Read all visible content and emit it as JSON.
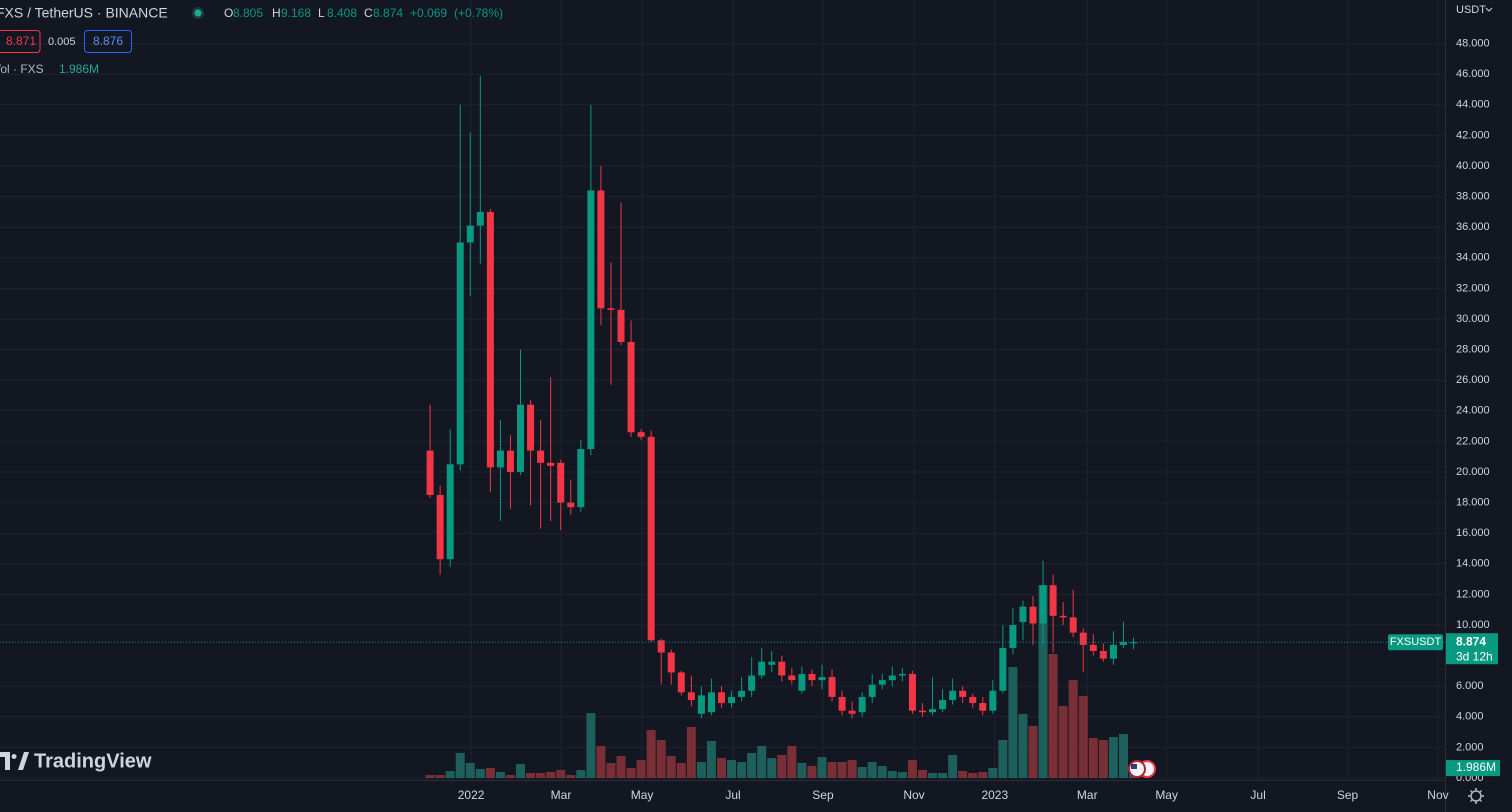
{
  "chart_data": {
    "type": "candlestick",
    "title": "FXS / TetherUS · BINANCE",
    "ohlc_letters": [
      "O",
      "H",
      "L",
      "C"
    ],
    "change": {
      "value": 0.069,
      "label": "+0.069"
    },
    "change_pct": {
      "value": 0.78,
      "label": "(+0.78%)"
    },
    "bid": 8.871,
    "spread": 0.005,
    "ask": 8.876,
    "volume_title": "Vol · FXS",
    "currency": "USDT",
    "countdown": "3d 12h",
    "brand": "TradingView",
    "up_color": "#089981",
    "down_color": "#f23645",
    "volume_up_color": "#1d5f5a",
    "volume_down_color": "#7a2e35",
    "grid": true,
    "categories": [
      null,
      null,
      null,
      null,
      null,
      null,
      null,
      null,
      null,
      null,
      null,
      null,
      null,
      null,
      null,
      null,
      null,
      null,
      null,
      null,
      null,
      null,
      null,
      null,
      null,
      null,
      null,
      null,
      null,
      null,
      null,
      null,
      null,
      null,
      null,
      null,
      null,
      null,
      null,
      null,
      null,
      null,
      null,
      null,
      null,
      null,
      null,
      null,
      null,
      null,
      null,
      null,
      null,
      null,
      null,
      null,
      null,
      null,
      null,
      null,
      null,
      null,
      null,
      null,
      null,
      null,
      null,
      null,
      null,
      null,
      null
    ],
    "series": [
      {
        "name": "FXSUSDT",
        "open": [
          21.4,
          18.5,
          14.3,
          20.5,
          35.0,
          36.1,
          37.0,
          20.3,
          21.4,
          20.0,
          24.4,
          21.4,
          20.6,
          20.6,
          18.0,
          17.7,
          21.5,
          38.4,
          30.7,
          30.6,
          28.5,
          22.6,
          22.3,
          9.0,
          8.2,
          6.9,
          5.6,
          4.2,
          4.3,
          5.6,
          4.9,
          5.3,
          5.7,
          6.7,
          7.4,
          7.6,
          6.7,
          5.7,
          6.8,
          6.4,
          6.6,
          5.3,
          4.4,
          4.3,
          5.3,
          6.1,
          6.4,
          6.7,
          6.8,
          4.4,
          4.3,
          4.5,
          5.1,
          5.7,
          5.3,
          4.9,
          4.4,
          5.7,
          8.5,
          10.2,
          11.2,
          10.1,
          12.6,
          10.6,
          10.5,
          9.5,
          8.7,
          8.3,
          7.8,
          8.7,
          8.805
        ],
        "high": [
          24.4,
          19.1,
          22.8,
          44.0,
          42.2,
          45.9,
          37.2,
          23.4,
          22.4,
          28.0,
          24.7,
          23.4,
          26.2,
          20.8,
          19.5,
          22.1,
          44.0,
          40.0,
          33.7,
          37.6,
          29.9,
          22.8,
          22.7,
          9.1,
          8.4,
          7.0,
          6.7,
          6.0,
          6.5,
          6.0,
          5.7,
          6.6,
          7.9,
          8.5,
          8.3,
          8.0,
          7.2,
          7.3,
          7.1,
          7.4,
          7.1,
          5.7,
          5.0,
          5.6,
          6.8,
          6.8,
          7.3,
          7.2,
          7.0,
          4.9,
          6.6,
          5.8,
          6.5,
          6.0,
          5.5,
          5.3,
          6.4,
          10.0,
          11.1,
          11.6,
          11.9,
          14.2,
          13.3,
          11.5,
          12.3,
          9.8,
          9.4,
          8.8,
          9.6,
          10.2,
          9.168
        ],
        "low": [
          18.3,
          13.3,
          13.8,
          20.1,
          31.5,
          33.6,
          18.7,
          16.8,
          17.6,
          19.8,
          17.8,
          16.3,
          16.8,
          16.2,
          17.2,
          17.4,
          21.1,
          29.6,
          25.7,
          28.3,
          22.3,
          22.1,
          8.9,
          6.1,
          6.1,
          5.4,
          4.7,
          3.9,
          4.1,
          4.6,
          4.6,
          5.0,
          5.3,
          6.5,
          6.9,
          6.3,
          6.1,
          5.5,
          6.0,
          5.8,
          5.0,
          4.1,
          3.9,
          4.0,
          4.9,
          5.8,
          6.0,
          6.3,
          4.2,
          4.0,
          4.1,
          4.3,
          4.8,
          4.9,
          4.6,
          4.1,
          4.2,
          5.5,
          8.1,
          9.0,
          8.7,
          8.7,
          8.2,
          10.0,
          9.2,
          6.9,
          8.0,
          7.6,
          7.4,
          8.5,
          8.408
        ],
        "close": [
          18.5,
          14.3,
          20.5,
          35.0,
          36.1,
          37.0,
          20.3,
          21.4,
          20.0,
          24.4,
          21.4,
          20.6,
          20.4,
          18.0,
          17.7,
          21.5,
          38.4,
          30.7,
          30.6,
          28.5,
          22.6,
          22.3,
          9.0,
          8.2,
          6.9,
          5.6,
          5.1,
          5.4,
          5.6,
          4.9,
          5.3,
          5.7,
          6.7,
          7.6,
          7.6,
          6.7,
          6.4,
          6.8,
          6.4,
          6.6,
          5.3,
          4.4,
          4.2,
          5.3,
          6.1,
          6.4,
          6.7,
          6.8,
          4.4,
          4.3,
          4.5,
          5.1,
          5.7,
          5.3,
          4.9,
          4.4,
          5.7,
          8.5,
          10.0,
          11.2,
          10.1,
          12.6,
          10.6,
          10.5,
          9.5,
          8.7,
          8.3,
          7.8,
          8.7,
          8.9,
          8.874
        ],
        "volume": [
          0.6,
          0.6,
          1.4,
          5.0,
          3.0,
          1.8,
          2.0,
          1.2,
          0.6,
          2.8,
          1.0,
          1.0,
          1.2,
          1.6,
          0.6,
          1.6,
          13.0,
          6.4,
          3.0,
          4.4,
          2.0,
          3.6,
          9.6,
          7.6,
          4.4,
          3.0,
          10.2,
          3.2,
          7.4,
          4.0,
          3.6,
          3.2,
          5.0,
          6.4,
          4.0,
          4.6,
          6.4,
          3.0,
          2.4,
          4.2,
          3.2,
          3.2,
          3.6,
          2.2,
          3.2,
          2.4,
          1.4,
          1.2,
          3.6,
          1.6,
          1.0,
          1.0,
          4.6,
          1.4,
          1.0,
          1.2,
          2.0,
          7.6,
          22.2,
          12.8,
          10.4,
          38.6,
          24.8,
          14.4,
          19.6,
          16.4,
          8.0,
          7.6,
          8.2,
          8.8,
          1.986
        ],
        "volume_label": "1.986M"
      }
    ],
    "ylim": [
      0,
      50.85
    ],
    "yticks": [
      {
        "value": 0,
        "label": "0.000"
      },
      {
        "value": 2,
        "label": "2.000"
      },
      {
        "value": 4,
        "label": "4.000"
      },
      {
        "value": 6,
        "label": "6.000"
      },
      {
        "value": 10,
        "label": "10.000"
      },
      {
        "value": 12,
        "label": "12.000"
      },
      {
        "value": 14,
        "label": "14.000"
      },
      {
        "value": 16,
        "label": "16.000"
      },
      {
        "value": 18,
        "label": "18.000"
      },
      {
        "value": 20,
        "label": "20.000"
      },
      {
        "value": 22,
        "label": "22.000"
      },
      {
        "value": 24,
        "label": "24.000"
      },
      {
        "value": 26,
        "label": "26.000"
      },
      {
        "value": 28,
        "label": "28.000"
      },
      {
        "value": 30,
        "label": "30.000"
      },
      {
        "value": 32,
        "label": "32.000"
      },
      {
        "value": 34,
        "label": "34.000"
      },
      {
        "value": 36,
        "label": "36.000"
      },
      {
        "value": 38,
        "label": "38.000"
      },
      {
        "value": 40,
        "label": "40.000"
      },
      {
        "value": 42,
        "label": "42.000"
      },
      {
        "value": 44,
        "label": "44.000"
      },
      {
        "value": 46,
        "label": "46.000"
      },
      {
        "value": 48,
        "label": "48.000"
      }
    ],
    "volume_ylim": [
      0,
      155.6
    ],
    "xlim": [
      -42.8,
      101
    ],
    "xticks": [
      {
        "value": 4.08,
        "label": "2022"
      },
      {
        "value": 13.03,
        "label": "Mar"
      },
      {
        "value": 21.1,
        "label": "May"
      },
      {
        "value": 30.15,
        "label": "Jul"
      },
      {
        "value": 39.1,
        "label": "Sep"
      },
      {
        "value": 48.16,
        "label": "Nov"
      },
      {
        "value": 56.2,
        "label": "2023"
      },
      {
        "value": 65.4,
        "label": "Mar"
      },
      {
        "value": 73.3,
        "label": "May"
      },
      {
        "value": 82.4,
        "label": "Jul"
      },
      {
        "value": 91.3,
        "label": "Sep"
      },
      {
        "value": 100.3,
        "label": "Nov"
      }
    ]
  }
}
